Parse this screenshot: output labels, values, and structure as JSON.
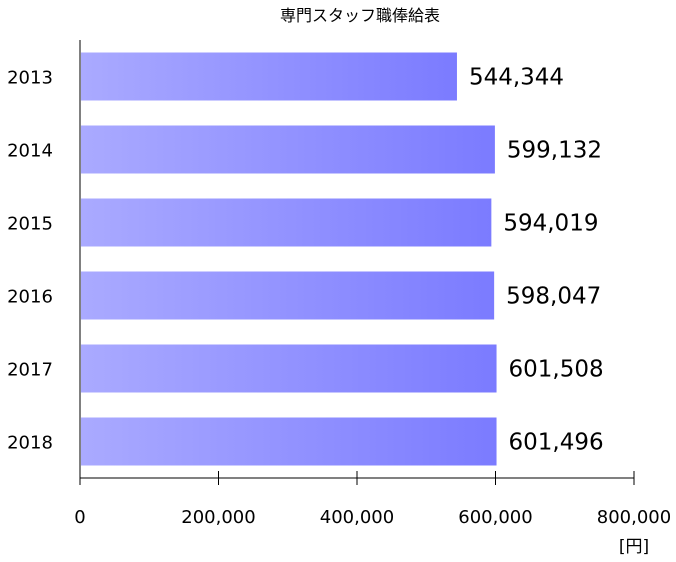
{
  "chart_data": {
    "type": "bar",
    "orientation": "horizontal",
    "title": "専門スタッフ職俸給表",
    "categories": [
      "2013",
      "2014",
      "2015",
      "2016",
      "2017",
      "2018"
    ],
    "values": [
      544344,
      599132,
      594019,
      598047,
      601508,
      601496
    ],
    "value_labels": [
      "544,344",
      "599,132",
      "594,019",
      "598,047",
      "601,508",
      "601,496"
    ],
    "xlim": [
      0,
      800000
    ],
    "xticks": [
      0,
      200000,
      400000,
      600000,
      800000
    ],
    "xtick_labels": [
      "0",
      "200,000",
      "400,000",
      "600,000",
      "800,000"
    ],
    "xunit": "[円]",
    "xlabel": "",
    "ylabel": "",
    "grid": false,
    "legend": "none",
    "bar_color_start": "#aaaaff",
    "bar_color_end": "#7b7bff"
  }
}
